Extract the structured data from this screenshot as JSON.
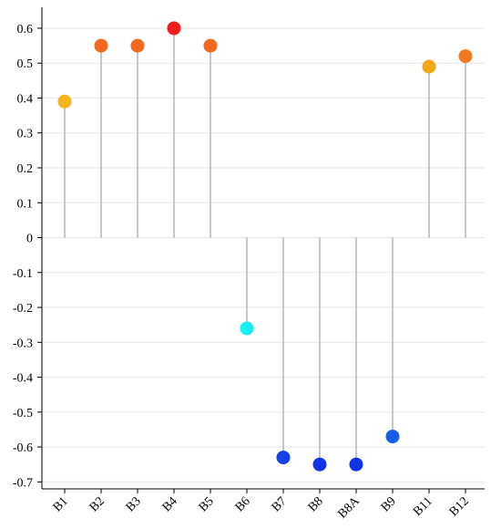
{
  "chart_data": {
    "type": "lollipop",
    "title": "",
    "xlabel": "",
    "ylabel": "",
    "categories": [
      "B1",
      "B2",
      "B3",
      "B4",
      "B5",
      "B6",
      "B7",
      "B8",
      "B8A",
      "B9",
      "B11",
      "B12"
    ],
    "values": [
      0.39,
      0.55,
      0.55,
      0.6,
      0.55,
      -0.26,
      -0.63,
      -0.65,
      -0.65,
      -0.57,
      0.49,
      0.52
    ],
    "point_colors": [
      "#f3b51b",
      "#f0691d",
      "#f0691d",
      "#ee1c1b",
      "#f0691d",
      "#16f0f2",
      "#1440e4",
      "#1133e6",
      "#1133e6",
      "#165ee8",
      "#f3a81a",
      "#f07a1e"
    ],
    "stem_color": "#a0a0a0",
    "ylim": [
      -0.72,
      0.66
    ],
    "yticks": [
      "0.6",
      "0.5",
      "0.4",
      "0.3",
      "0.2",
      "0.1",
      "0",
      "-0.1",
      "-0.2",
      "-0.3",
      "-0.4",
      "-0.5",
      "-0.6",
      "-0.7"
    ],
    "xtick_rotation": -45,
    "grid": true,
    "legend": "none"
  }
}
